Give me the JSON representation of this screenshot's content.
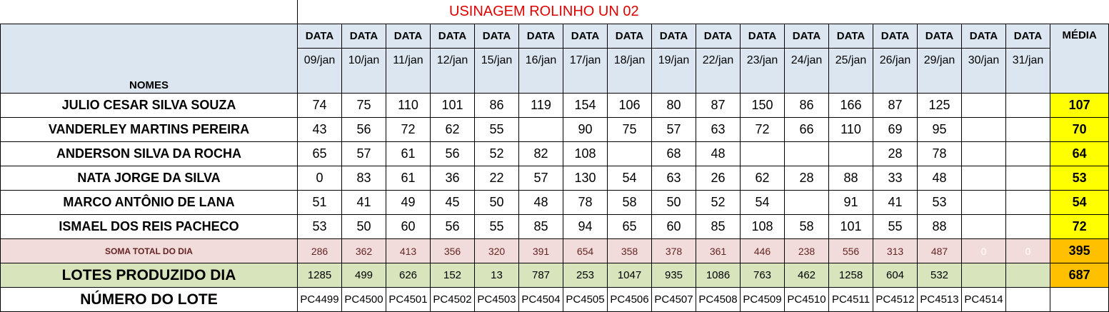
{
  "title": "USINAGEM ROLINHO UN 02",
  "header_label": "DATA",
  "nomes_label": "NOMES",
  "media_label": "MÉDIA",
  "dates": [
    "09/jan",
    "10/jan",
    "11/jan",
    "12/jan",
    "15/jan",
    "16/jan",
    "17/jan",
    "18/jan",
    "19/jan",
    "22/jan",
    "23/jan",
    "24/jan",
    "25/jan",
    "26/jan",
    "29/jan",
    "30/jan",
    "31/jan"
  ],
  "rows": [
    {
      "name": "JULIO CESAR SILVA SOUZA",
      "values": [
        "74",
        "75",
        "110",
        "101",
        "86",
        "119",
        "154",
        "106",
        "80",
        "87",
        "150",
        "86",
        "166",
        "87",
        "125",
        "",
        ""
      ],
      "media": "107"
    },
    {
      "name": "VANDERLEY MARTINS PEREIRA",
      "values": [
        "43",
        "56",
        "72",
        "62",
        "55",
        "",
        "90",
        "75",
        "57",
        "63",
        "72",
        "66",
        "110",
        "69",
        "95",
        "",
        ""
      ],
      "media": "70"
    },
    {
      "name": "ANDERSON SILVA DA ROCHA",
      "values": [
        "65",
        "57",
        "61",
        "56",
        "52",
        "82",
        "108",
        "",
        "68",
        "48",
        "",
        "",
        "",
        "28",
        "78",
        "",
        ""
      ],
      "media": "64"
    },
    {
      "name": "NATA JORGE DA SILVA",
      "values": [
        "0",
        "83",
        "61",
        "36",
        "22",
        "57",
        "130",
        "54",
        "63",
        "26",
        "62",
        "28",
        "88",
        "33",
        "48",
        "",
        ""
      ],
      "media": "53"
    },
    {
      "name": "MARCO ANTÔNIO DE LANA",
      "values": [
        "51",
        "41",
        "49",
        "45",
        "50",
        "48",
        "78",
        "58",
        "50",
        "52",
        "54",
        "",
        "91",
        "41",
        "53",
        "",
        ""
      ],
      "media": "54"
    },
    {
      "name": "ISMAEL DOS REIS PACHECO",
      "values": [
        "53",
        "50",
        "60",
        "56",
        "55",
        "85",
        "94",
        "65",
        "60",
        "85",
        "108",
        "58",
        "101",
        "55",
        "88",
        "",
        ""
      ],
      "media": "72"
    }
  ],
  "soma": {
    "label": "SOMA TOTAL DO DIA",
    "values": [
      "286",
      "362",
      "413",
      "356",
      "320",
      "391",
      "654",
      "358",
      "378",
      "361",
      "446",
      "238",
      "556",
      "313",
      "487",
      "0",
      "0"
    ],
    "media": "395"
  },
  "lotes": {
    "label": "LOTES PRODUZIDO DIA",
    "values": [
      "1285",
      "499",
      "626",
      "152",
      "13",
      "787",
      "253",
      "1047",
      "935",
      "1086",
      "763",
      "462",
      "1258",
      "604",
      "532",
      "",
      ""
    ],
    "media": "687"
  },
  "numero": {
    "label": "NÚMERO DO LOTE",
    "values": [
      "PC4499",
      "PC4500",
      "PC4501",
      "PC4502",
      "PC4503",
      "PC4504",
      "PC4505",
      "PC4506",
      "PC4507",
      "PC4508",
      "PC4509",
      "PC4510",
      "PC4511",
      "PC4512",
      "PC4513",
      "PC4514",
      ""
    ],
    "media": ""
  },
  "colors": {
    "title": "#e00000",
    "header_bg": "#dce6f1",
    "media_bg": "#ffff00",
    "soma_bg": "#f2dcdb",
    "soma_avg_bg": "#ffc000",
    "lotes_bg": "#d8e4bc"
  }
}
